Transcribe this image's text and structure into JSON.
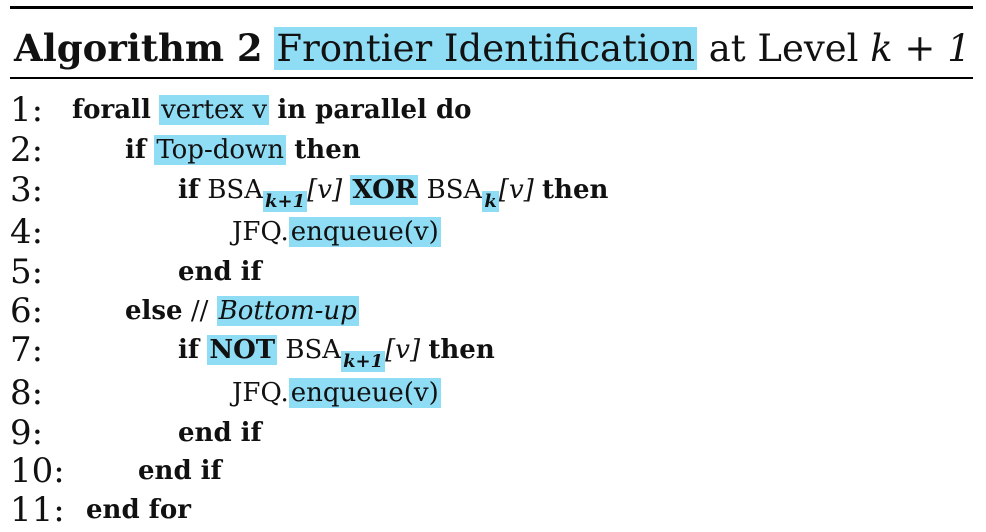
{
  "algorithm": {
    "label": "Algorithm 2",
    "name": "Frontier Identification",
    "suffix_text": "at Level",
    "suffix_math": "k + 1"
  },
  "lines": [
    {
      "num": "1:",
      "kw1": "forall",
      "hl1": "vertex v",
      "kw2": "in parallel do"
    },
    {
      "num": "2:",
      "kw1": "if",
      "hl1": "Top-down",
      "kw2": "then"
    },
    {
      "num": "3:",
      "kw1": "if",
      "t1": "BSA",
      "sub1": "k+1",
      "t2": "[v]",
      "hl1": "XOR",
      "t3": "BSA",
      "sub2": "k",
      "t4": "[v]",
      "kw2": "then"
    },
    {
      "num": "4:",
      "t1": "JFQ.",
      "hl1": "enqueue(v)"
    },
    {
      "num": "5:",
      "kw1": "end if"
    },
    {
      "num": "6:",
      "kw1": "else",
      "t1": "//",
      "hl1": "Bottom-up"
    },
    {
      "num": "7:",
      "kw1": "if",
      "hl1": "NOT",
      "t1": "BSA",
      "sub1": "k+1",
      "t2": "[v]",
      "kw2": "then"
    },
    {
      "num": "8:",
      "t1": "JFQ.",
      "hl1": "enqueue(v)"
    },
    {
      "num": "9:",
      "kw1": "end if"
    },
    {
      "num": "10:",
      "kw1": "end if"
    },
    {
      "num": "11:",
      "kw1": "end for"
    }
  ],
  "colors": {
    "highlight": "#8fdcf5",
    "text": "#111111",
    "rule": "#000000"
  }
}
